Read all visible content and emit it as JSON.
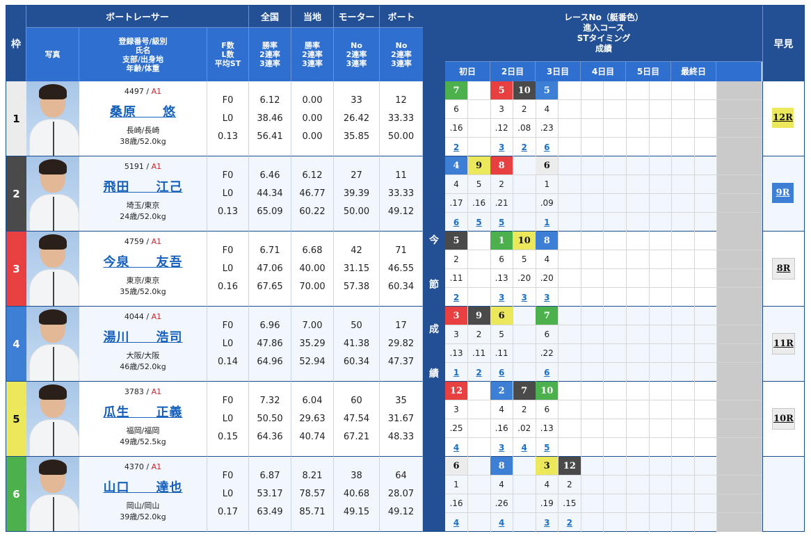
{
  "header": {
    "waku": "枠",
    "racer": "ボートレーサー",
    "zenkoku": "全国",
    "touchi": "当地",
    "motor": "モーター",
    "boat": "ボート",
    "photo": "写真",
    "name_lines": [
      "登録番号/級別",
      "氏名",
      "支部/出身地",
      "年齢/体重"
    ],
    "fl_lines": [
      "F数",
      "L数",
      "平均ST"
    ],
    "zenkoku_lines": [
      "勝率",
      "2連率",
      "3連率"
    ],
    "touchi_lines": [
      "勝率",
      "2連率",
      "3連率"
    ],
    "motor_lines": [
      "No",
      "2連率",
      "3連率"
    ],
    "boat_lines": [
      "No",
      "2連率",
      "3連率"
    ],
    "race_title_lines": [
      "レースNo（艇番色）",
      "進入コース",
      "STタイミング",
      "成績"
    ],
    "days": [
      "初日",
      "2日目",
      "3日目",
      "4日目",
      "5日目",
      "最終日",
      ""
    ],
    "hayami": "早見",
    "konsetsu": [
      "今",
      "節",
      "成",
      "績"
    ]
  },
  "colors": {
    "frame": [
      "#ececec",
      "#4a4a4a",
      "#e84040",
      "#3d7fd4",
      "#ebe95b",
      "#4cb04c"
    ],
    "header_dark": "#234f95",
    "header_blue": "#2f6fd0",
    "link": "#1a6fc8"
  },
  "racers": [
    {
      "frame": "1",
      "reg": "4497",
      "class": "A1",
      "name": "桑原　　悠",
      "branch": "長崎/長崎",
      "age_weight": "38歳/52.0kg",
      "fl": [
        "F0",
        "L0",
        "0.13"
      ],
      "zenkoku": [
        "6.12",
        "38.46",
        "56.41"
      ],
      "touchi": [
        "0.00",
        "0.00",
        "0.00"
      ],
      "motor": [
        "33",
        "26.42",
        "35.85"
      ],
      "boat": [
        "12",
        "33.33",
        "50.00"
      ],
      "races": [
        {
          "col": 0,
          "race": "7",
          "color": 6,
          "course": "6",
          "st": ".16",
          "result": "2"
        },
        {
          "col": 2,
          "race": "5",
          "color": 3,
          "course": "3",
          "st": ".12",
          "result": "3"
        },
        {
          "col": 3,
          "race": "10",
          "color": 2,
          "course": "2",
          "st": ".08",
          "result": "2"
        },
        {
          "col": 4,
          "race": "5",
          "color": 4,
          "course": "4",
          "st": ".23",
          "result": "6"
        }
      ],
      "hayami": "12R",
      "hayami_color": 5
    },
    {
      "frame": "2",
      "reg": "5191",
      "class": "A1",
      "name": "飛田　　江己",
      "branch": "埼玉/東京",
      "age_weight": "24歳/52.0kg",
      "fl": [
        "F0",
        "L0",
        "0.13"
      ],
      "zenkoku": [
        "6.46",
        "44.34",
        "65.09"
      ],
      "touchi": [
        "6.12",
        "46.77",
        "60.22"
      ],
      "motor": [
        "27",
        "39.39",
        "50.00"
      ],
      "boat": [
        "11",
        "33.33",
        "49.12"
      ],
      "races": [
        {
          "col": 0,
          "race": "4",
          "color": 4,
          "course": "4",
          "st": ".17",
          "result": "6"
        },
        {
          "col": 1,
          "race": "9",
          "color": 5,
          "course": "5",
          "st": ".16",
          "result": "5"
        },
        {
          "col": 2,
          "race": "8",
          "color": 3,
          "course": "2",
          "st": ".21",
          "result": "5"
        },
        {
          "col": 4,
          "race": "6",
          "color": 1,
          "course": "1",
          "st": ".09",
          "result": "1"
        }
      ],
      "hayami": "9R",
      "hayami_color": 4
    },
    {
      "frame": "3",
      "reg": "4759",
      "class": "A1",
      "name": "今泉　　友吾",
      "branch": "東京/東京",
      "age_weight": "35歳/52.0kg",
      "fl": [
        "F0",
        "L0",
        "0.16"
      ],
      "zenkoku": [
        "6.71",
        "47.06",
        "67.65"
      ],
      "touchi": [
        "6.68",
        "40.00",
        "70.00"
      ],
      "motor": [
        "42",
        "31.15",
        "57.38"
      ],
      "boat": [
        "71",
        "46.55",
        "60.34"
      ],
      "races": [
        {
          "col": 0,
          "race": "5",
          "color": 2,
          "course": "2",
          "st": ".11",
          "result": "2"
        },
        {
          "col": 2,
          "race": "1",
          "color": 6,
          "course": "6",
          "st": ".13",
          "result": "3"
        },
        {
          "col": 3,
          "race": "10",
          "color": 5,
          "course": "5",
          "st": ".20",
          "result": "3"
        },
        {
          "col": 4,
          "race": "8",
          "color": 4,
          "course": "4",
          "st": ".20",
          "result": "3"
        }
      ],
      "hayami": "8R",
      "hayami_color": 1
    },
    {
      "frame": "4",
      "reg": "4044",
      "class": "A1",
      "name": "湯川　　浩司",
      "branch": "大阪/大阪",
      "age_weight": "46歳/52.0kg",
      "fl": [
        "F0",
        "L0",
        "0.14"
      ],
      "zenkoku": [
        "6.96",
        "47.86",
        "64.96"
      ],
      "touchi": [
        "7.00",
        "35.29",
        "52.94"
      ],
      "motor": [
        "50",
        "41.38",
        "60.34"
      ],
      "boat": [
        "17",
        "29.82",
        "47.37"
      ],
      "races": [
        {
          "col": 0,
          "race": "3",
          "color": 3,
          "course": "3",
          "st": ".13",
          "result": "1"
        },
        {
          "col": 1,
          "race": "9",
          "color": 2,
          "course": "2",
          "st": ".11",
          "result": "2"
        },
        {
          "col": 2,
          "race": "6",
          "color": 5,
          "course": "5",
          "st": ".11",
          "result": "6"
        },
        {
          "col": 4,
          "race": "7",
          "color": 6,
          "course": "6",
          "st": ".22",
          "result": "6"
        }
      ],
      "hayami": "11R",
      "hayami_color": 1
    },
    {
      "frame": "5",
      "reg": "3783",
      "class": "A1",
      "name": "瓜生　　正義",
      "branch": "福岡/福岡",
      "age_weight": "49歳/52.5kg",
      "fl": [
        "F0",
        "L0",
        "0.15"
      ],
      "zenkoku": [
        "7.32",
        "50.50",
        "64.36"
      ],
      "touchi": [
        "6.04",
        "29.63",
        "40.74"
      ],
      "motor": [
        "60",
        "47.54",
        "67.21"
      ],
      "boat": [
        "35",
        "31.67",
        "48.33"
      ],
      "races": [
        {
          "col": 0,
          "race": "12",
          "color": 3,
          "course": "3",
          "st": ".25",
          "result": "4"
        },
        {
          "col": 2,
          "race": "2",
          "color": 4,
          "course": "4",
          "st": ".16",
          "result": "3"
        },
        {
          "col": 3,
          "race": "7",
          "color": 2,
          "course": "2",
          "st": ".02",
          "result": "4"
        },
        {
          "col": 4,
          "race": "10",
          "color": 6,
          "course": "6",
          "st": ".13",
          "result": "5"
        }
      ],
      "hayami": "10R",
      "hayami_color": 1
    },
    {
      "frame": "6",
      "reg": "4370",
      "class": "A1",
      "name": "山口　　達也",
      "branch": "岡山/岡山",
      "age_weight": "39歳/52.0kg",
      "fl": [
        "F0",
        "L0",
        "0.17"
      ],
      "zenkoku": [
        "6.87",
        "53.17",
        "63.49"
      ],
      "touchi": [
        "8.21",
        "78.57",
        "85.71"
      ],
      "motor": [
        "38",
        "40.68",
        "49.15"
      ],
      "boat": [
        "64",
        "28.07",
        "49.12"
      ],
      "races": [
        {
          "col": 0,
          "race": "6",
          "color": 1,
          "course": "1",
          "st": ".16",
          "result": "4"
        },
        {
          "col": 2,
          "race": "8",
          "color": 4,
          "course": "4",
          "st": ".26",
          "result": "4"
        },
        {
          "col": 4,
          "race": "3",
          "color": 5,
          "course": "4",
          "st": ".19",
          "result": "3"
        },
        {
          "col": 5,
          "race": "12",
          "color": 2,
          "course": "2",
          "st": ".15",
          "result": "2"
        }
      ],
      "hayami": "",
      "hayami_color": 0
    }
  ]
}
